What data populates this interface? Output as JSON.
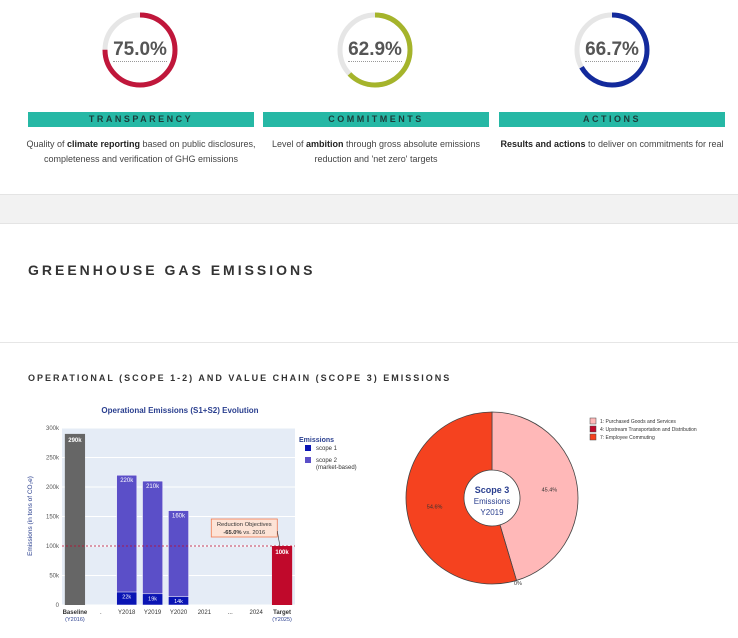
{
  "gauges": [
    {
      "value": "75.0%",
      "fraction": 0.75,
      "color": "#c0173b",
      "label": "TRANSPARENCY",
      "desc_pre": "Quality of ",
      "desc_bold": "climate reporting",
      "desc_post": " based on public disclosures,",
      "desc_line2": "completeness and verification of GHG emissions"
    },
    {
      "value": "62.9%",
      "fraction": 0.629,
      "color": "#a5b42b",
      "label": "COMMITMENTS",
      "desc_pre": "Level of ",
      "desc_bold": "ambition",
      "desc_post": " through gross absolute emissions",
      "desc_line2": "reduction and 'net zero' targets"
    },
    {
      "value": "66.7%",
      "fraction": 0.667,
      "color": "#132a9c",
      "label": "ACTIONS",
      "desc_pre": "",
      "desc_bold": "Results and actions",
      "desc_post": " to deliver on commitments for real",
      "desc_line2": ""
    }
  ],
  "section_title": "GREENHOUSE GAS EMISSIONS",
  "sub_title": "OPERATIONAL (SCOPE 1-2) AND VALUE CHAIN (SCOPE 3) EMISSIONS",
  "chart_data": [
    {
      "type": "bar",
      "title": "Operational Emissions (S1+S2) Evolution",
      "ylabel": "Emissions (in tons of CO₂e)",
      "ylim": [
        0,
        300000
      ],
      "yticks": [
        "0",
        "50k",
        "100k",
        "150k",
        "200k",
        "250k",
        "300k"
      ],
      "categories": [
        "Baseline|(Y2016)",
        ".",
        "Y2018",
        "Y2019",
        "Y2020",
        "2021",
        "...",
        "2024",
        "Target|(Y2025)"
      ],
      "legend_title": "Emissions",
      "series": [
        {
          "name": "scope 1",
          "color": "#0a14b4",
          "values": [
            null,
            null,
            22000,
            19000,
            14000,
            null,
            null,
            null,
            null
          ],
          "labels": [
            "",
            "",
            "22k",
            "19k",
            "14k",
            "",
            "",
            "",
            ""
          ]
        },
        {
          "name": "scope 2|(market-based)",
          "color": "#5b4fc8",
          "values": [
            null,
            null,
            220000,
            210000,
            160000,
            null,
            null,
            null,
            null
          ],
          "labels": [
            "",
            "",
            "220k",
            "210k",
            "160k",
            "",
            "",
            "",
            ""
          ]
        }
      ],
      "baseline": {
        "value": 290000,
        "label": "290k",
        "color": "#666666"
      },
      "target": {
        "value": 100000,
        "label": "100k",
        "color": "#c0092b"
      },
      "annotation": {
        "line1": "Reduction Objectives",
        "line2_bold": "-65.0%",
        "line2_rest": " vs. 2016"
      }
    },
    {
      "type": "pie",
      "center_title": "Scope 3",
      "center_sub": "Emissions",
      "center_year": "Y2019",
      "slices": [
        {
          "label": "1: Purchased Goods and Services",
          "value": 45.4,
          "text": "45.4%",
          "color": "#ffb8b8"
        },
        {
          "label": "4: Upstream Transportation and Distribution",
          "value": 0.0,
          "text": "0%",
          "color": "#c0092b"
        },
        {
          "label": "7: Employee Commuting",
          "value": 54.6,
          "text": "54.6%",
          "color": "#f5421f"
        }
      ]
    }
  ]
}
